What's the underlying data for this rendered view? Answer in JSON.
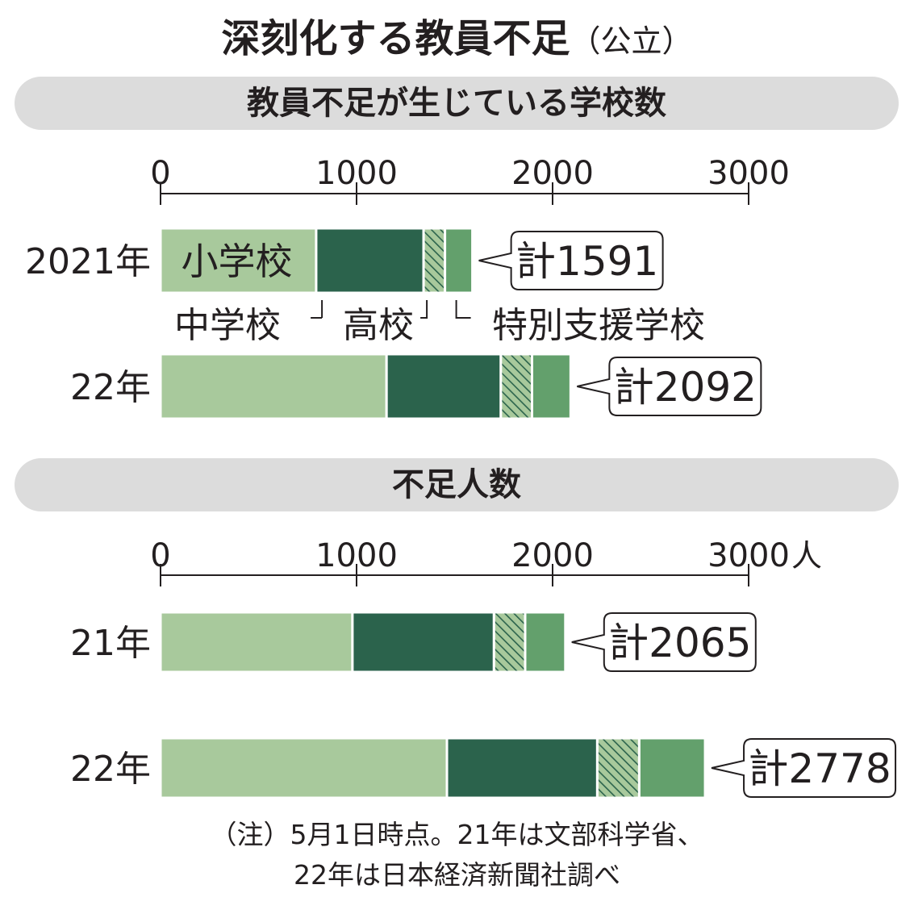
{
  "title": {
    "main": "深刻化する教員不足",
    "sub": "（公立）"
  },
  "colors": {
    "elementary": "#a8c99c",
    "junior_high": "#2b634c",
    "high_school_fill": "#a8c99c",
    "high_school_hatch": "#2b634c",
    "special_support": "#63a06c",
    "section_bar": "#dcdcdc",
    "text": "#231f20"
  },
  "chart_data": [
    {
      "type": "bar",
      "orientation": "horizontal",
      "stacked": true,
      "title": "教員不足が生じている学校数",
      "axis_unit": "",
      "xlim": [
        0,
        3000
      ],
      "ticks": [
        0,
        1000,
        2000,
        3000
      ],
      "tick_labels": [
        "0",
        "1000",
        "2000",
        "3000"
      ],
      "categories": [
        "2021年",
        "22年"
      ],
      "series": [
        {
          "name": "小学校",
          "values": [
            794,
            1153
          ]
        },
        {
          "name": "中学校",
          "values": [
            548,
            583
          ]
        },
        {
          "name": "高校",
          "values": [
            109,
            159
          ]
        },
        {
          "name": "特別支援学校",
          "values": [
            140,
            197
          ]
        }
      ],
      "totals": [
        1591,
        2092
      ],
      "total_labels": [
        "計1591",
        "計2092"
      ],
      "total_prefix": "計"
    },
    {
      "type": "bar",
      "orientation": "horizontal",
      "stacked": true,
      "title": "不足人数",
      "axis_unit": "人",
      "xlim": [
        0,
        3000
      ],
      "ticks": [
        0,
        1000,
        2000,
        3000
      ],
      "tick_labels": [
        "0",
        "1000",
        "2000",
        "3000"
      ],
      "categories": [
        "21年",
        "22年"
      ],
      "series": [
        {
          "name": "小学校",
          "values": [
            979,
            1461
          ]
        },
        {
          "name": "中学校",
          "values": [
            722,
            767
          ]
        },
        {
          "name": "高校",
          "values": [
            159,
            214
          ]
        },
        {
          "name": "特別支援学校",
          "values": [
            205,
            336
          ]
        }
      ],
      "totals": [
        2065,
        2778
      ],
      "total_labels": [
        "計2065",
        "計2778"
      ],
      "total_prefix": "計"
    }
  ],
  "note": {
    "line1": "（注）5月1日時点。21年は文部科学省、",
    "line2": "22年は日本経済新聞社調べ"
  }
}
